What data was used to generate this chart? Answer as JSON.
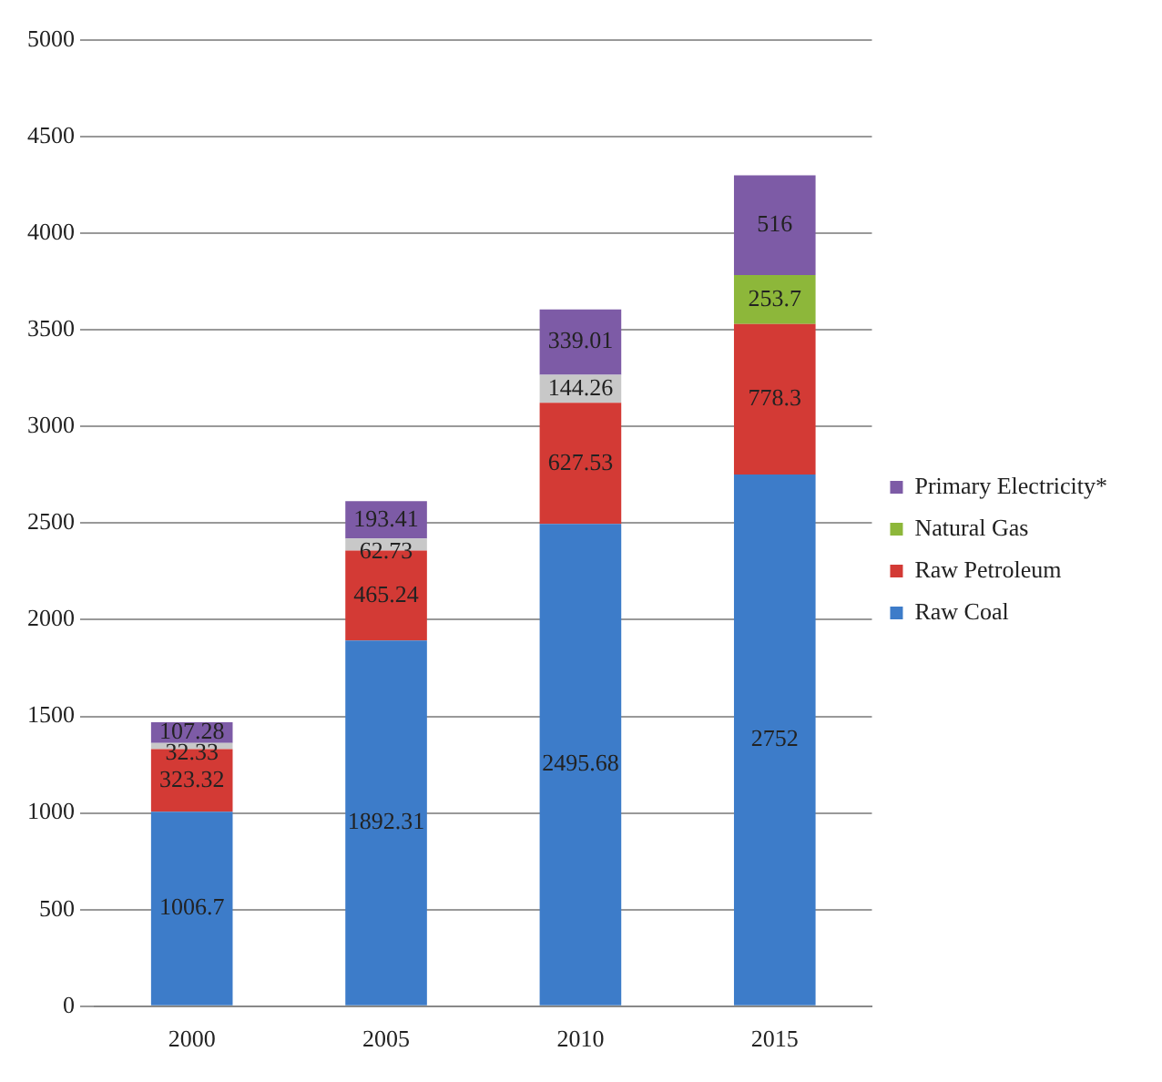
{
  "chart_data": {
    "type": "bar",
    "stacked": true,
    "categories": [
      "2000",
      "2005",
      "2010",
      "2015"
    ],
    "series": [
      {
        "name": "Raw Coal",
        "color": "#3d7cc9",
        "values": [
          1006.7,
          1892.31,
          2495.68,
          2752
        ]
      },
      {
        "name": "Raw Petroleum",
        "color": "#d33a35",
        "values": [
          323.32,
          465.24,
          627.53,
          778.3
        ]
      },
      {
        "name": "Natural Gas",
        "color": "#8db73a",
        "colors": [
          "#c8c8c8",
          "#c8c8c8",
          "#c8c8c8",
          "#8db73a"
        ],
        "values": [
          32.33,
          62.73,
          144.26,
          253.7
        ]
      },
      {
        "name": "Primary Electricity*",
        "color": "#7d5ba6",
        "values": [
          107.28,
          193.41,
          339.01,
          516
        ]
      }
    ],
    "ylim": [
      0,
      5000
    ],
    "yticks": [
      0,
      500,
      1000,
      1500,
      2000,
      2500,
      3000,
      3500,
      4000,
      4500,
      5000
    ],
    "grid": "y",
    "legend": "right",
    "data_labels": true
  }
}
